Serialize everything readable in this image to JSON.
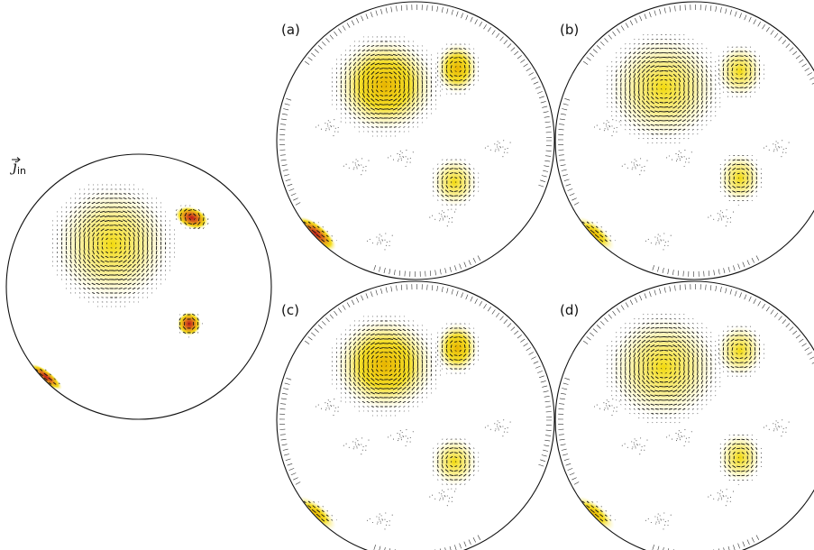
{
  "figure": {
    "input_label": {
      "symbol": "j",
      "subscript": "in"
    },
    "panels": [
      {
        "id": "input",
        "label": ""
      },
      {
        "id": "a",
        "label": "(a)"
      },
      {
        "id": "b",
        "label": "(b)"
      },
      {
        "id": "c",
        "label": "(c)"
      },
      {
        "id": "d",
        "label": "(d)"
      }
    ]
  },
  "colors": {
    "circle": "#111111",
    "arrow": "#111111",
    "low": "#fff7b0",
    "mid": "#f2d800",
    "high": "#e07a1a",
    "peak": "#c0181a"
  }
}
